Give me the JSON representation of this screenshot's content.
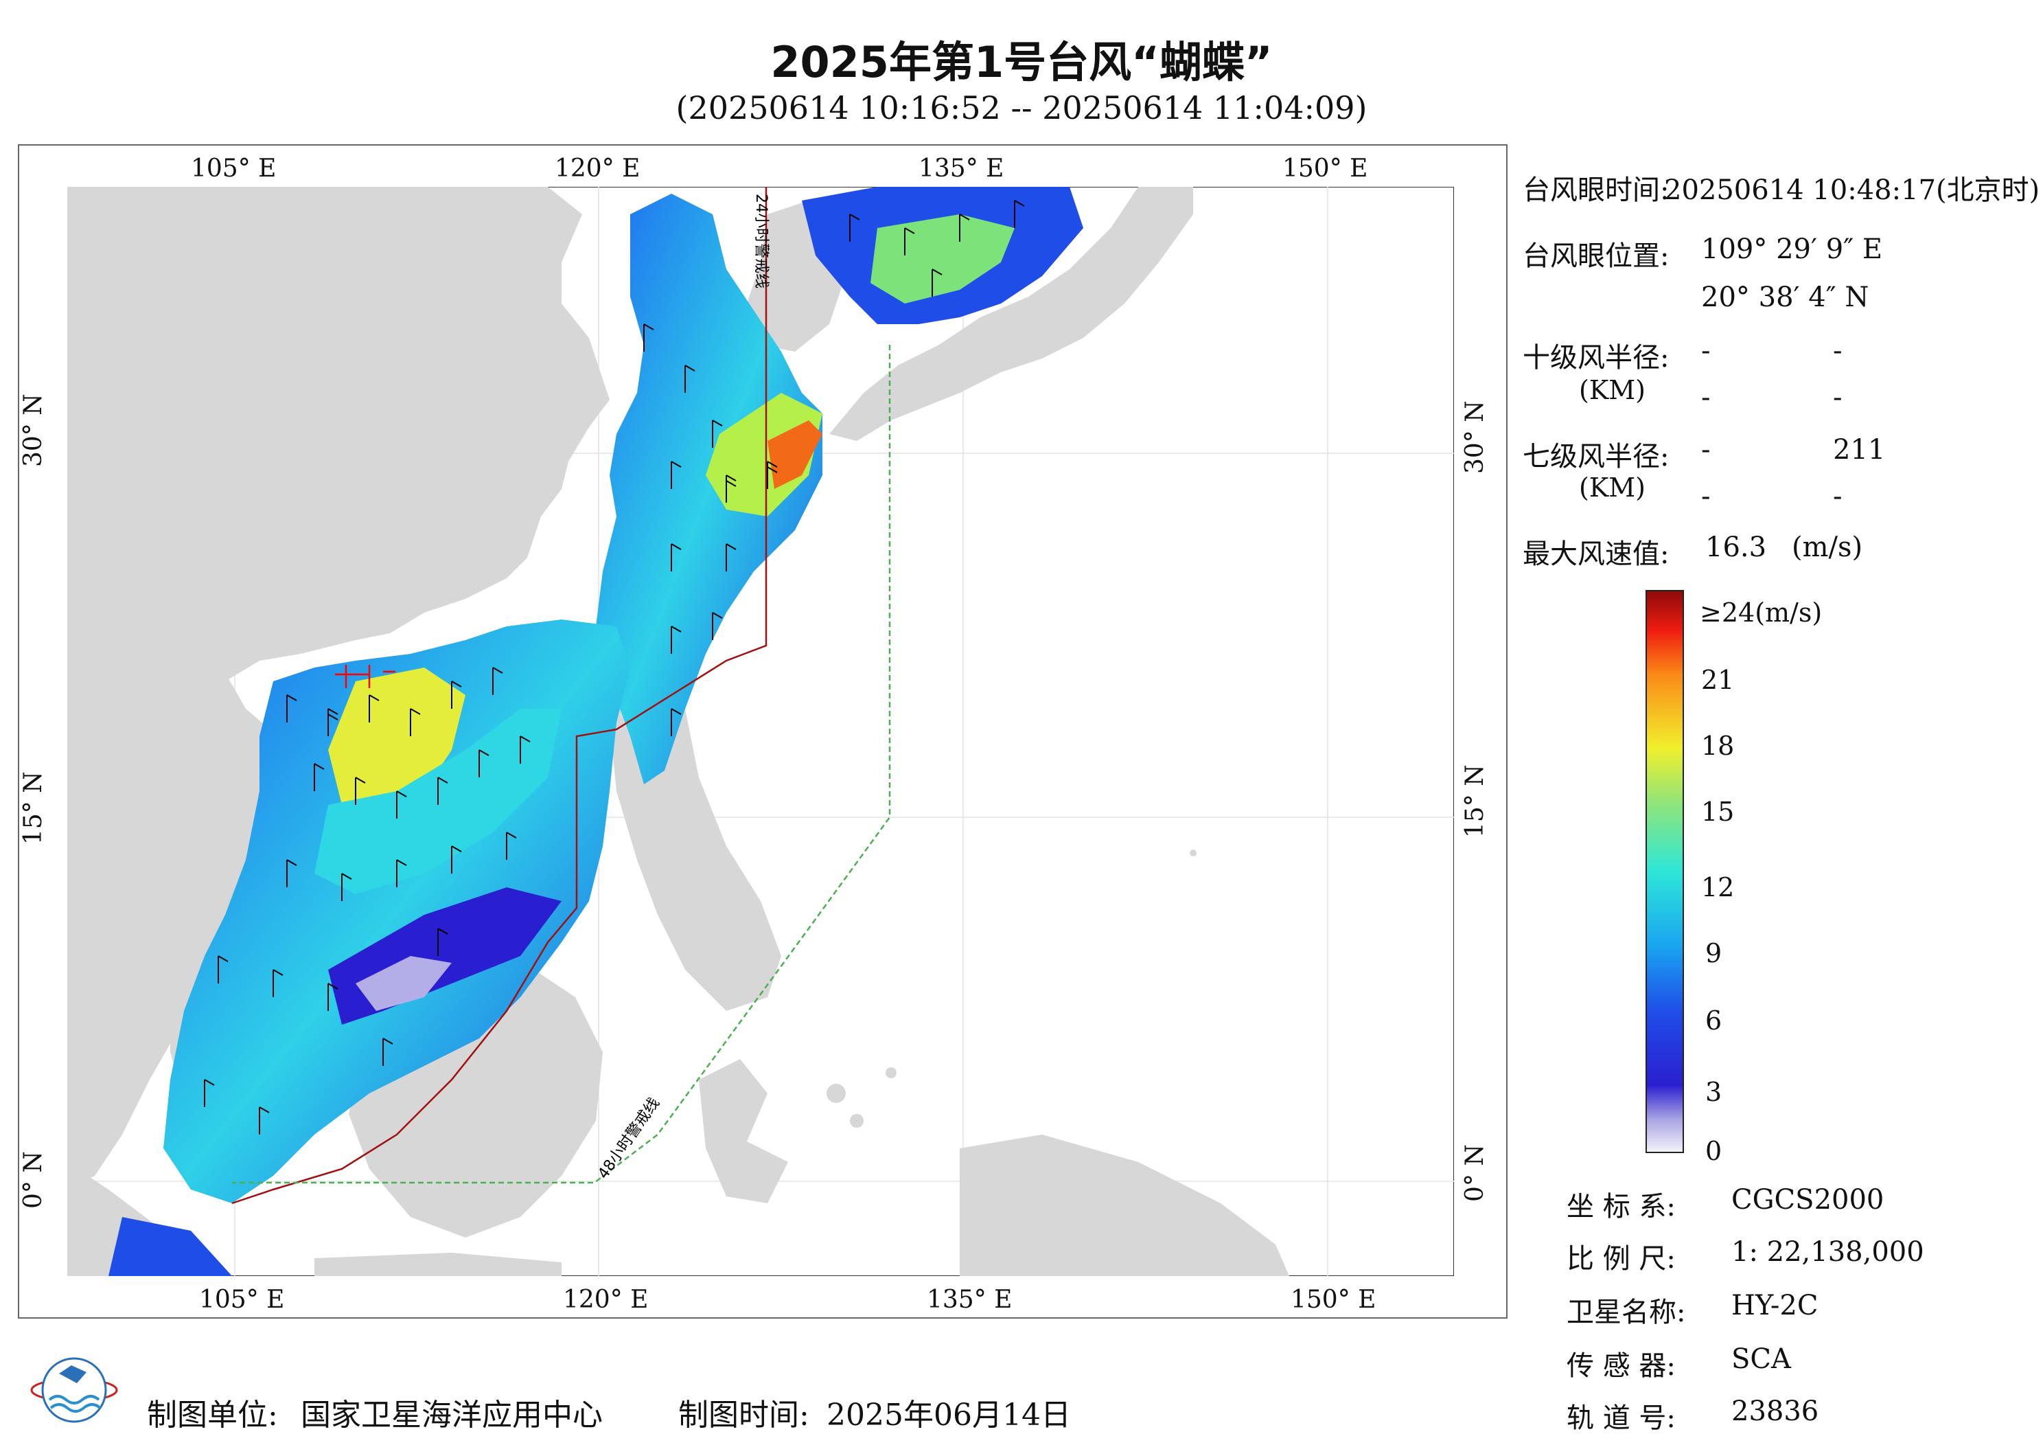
{
  "title": "2025年第1号台风“蝴蝶”",
  "subtitle": "(20250614 10:16:52 -- 20250614 11:04:09)",
  "map": {
    "top_lon_labels": [
      "105° E",
      "120° E",
      "135° E",
      "150° E"
    ],
    "bottom_lon_labels": [
      "105° E",
      "120° E",
      "135° E",
      "150° E"
    ],
    "left_lat_labels": [
      "30° N",
      "15° N",
      "0° N"
    ],
    "right_lat_labels": [
      "30° N",
      "15° N",
      "0° N"
    ],
    "warning_line_24h": "24小时警戒线",
    "warning_line_48h": "48小时警戒线",
    "colors": {
      "land": "#d7d7d7",
      "sea": "#ffffff",
      "line_24h": "#a01010",
      "line_48h": "#4caf50",
      "marker": "#ff0000"
    }
  },
  "info": {
    "eye_time_label": "台风眼时间:",
    "eye_time_value": "20250614 10:48:17(北京时)",
    "eye_pos_label": "台风眼位置:",
    "eye_lon": "109° 29′ 9″ E",
    "eye_lat": "20° 38′ 4″ N",
    "r10_label": "十级风半径:",
    "r10_unit": "(KM)",
    "r10_values": [
      "-",
      "-",
      "-",
      "-"
    ],
    "r7_label": "七级风半径:",
    "r7_unit": "(KM)",
    "r7_values": [
      "-",
      "211",
      "-",
      "-"
    ],
    "max_wind_label": "最大风速值:",
    "max_wind_value": "16.3",
    "max_wind_unit": "(m/s)"
  },
  "colorbar": {
    "top_label": "≥24(m/s)",
    "ticks": [
      "21",
      "18",
      "15",
      "12",
      "9",
      "6",
      "3",
      "0"
    ]
  },
  "meta": {
    "crs_label": "坐 标 系:",
    "crs_value": "CGCS2000",
    "scale_label": "比 例 尺:",
    "scale_value": "1: 22,138,000",
    "satellite_label": "卫星名称:",
    "satellite_value": "HY-2C",
    "sensor_label": "传 感 器:",
    "sensor_value": "SCA",
    "orbit_label": "轨 道 号:",
    "orbit_value": "23836"
  },
  "footer": {
    "unit_label": "制图单位:",
    "unit_value": "国家卫星海洋应用中心",
    "time_label": "制图时间:",
    "time_value": "2025年06月14日"
  }
}
